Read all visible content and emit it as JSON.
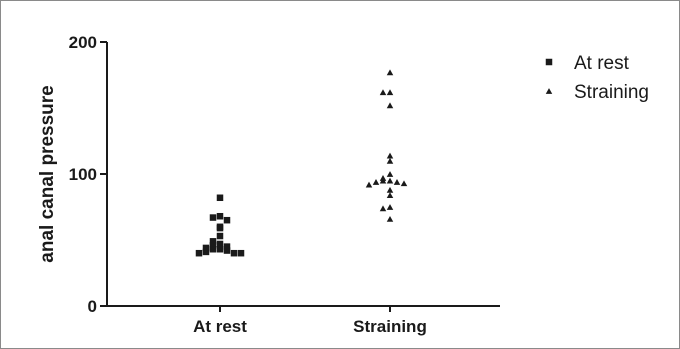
{
  "chart_data": {
    "type": "scatter",
    "ylabel": "anal canal pressure",
    "ylim": [
      0,
      200
    ],
    "yticks": [
      0,
      100,
      200
    ],
    "categories": [
      "At rest",
      "Straining"
    ],
    "legend_position": "top-right",
    "grid": false,
    "series": [
      {
        "name": "At rest",
        "marker": "square",
        "values": [
          82,
          68,
          67,
          65,
          60,
          59,
          53,
          49,
          47,
          46,
          45,
          44,
          43,
          43,
          42,
          41,
          40,
          40,
          40
        ]
      },
      {
        "name": "Straining",
        "marker": "triangle",
        "values": [
          177,
          162,
          162,
          152,
          114,
          110,
          100,
          97,
          95,
          95,
          94,
          94,
          93,
          92,
          88,
          84,
          75,
          74,
          66
        ]
      }
    ],
    "colors": {
      "marker": "#1a1a1a",
      "axis": "#1a1a1a",
      "frame": "#8a8a8a"
    }
  }
}
